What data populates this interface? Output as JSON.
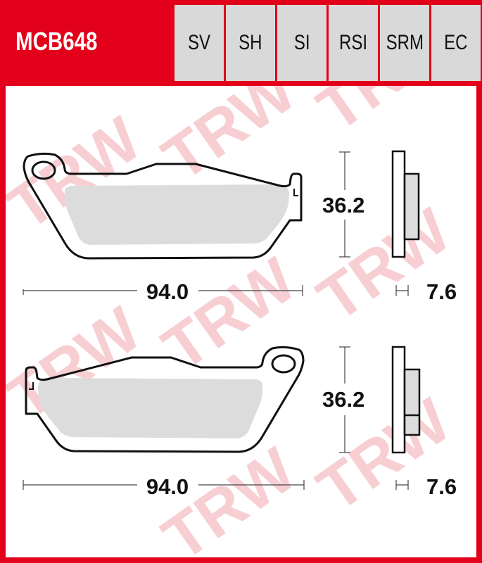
{
  "header": {
    "part_number": "MCB648",
    "compounds": [
      "SV",
      "SH",
      "SI",
      "RSI",
      "SRM",
      "EC"
    ]
  },
  "colors": {
    "brand_red": "#e2001a",
    "cell_gray": "#d9d9d9",
    "friction_gray": "#dcdcdc",
    "watermark_pink": "#f7cfd3"
  },
  "watermark": "TRW",
  "pads": [
    {
      "name": "top-pad",
      "marking": "L",
      "length": "94.0",
      "height": "36.2",
      "thickness": "7.6"
    },
    {
      "name": "bottom-pad",
      "marking": "L",
      "length": "94.0",
      "height": "36.2",
      "thickness": "7.6"
    }
  ]
}
